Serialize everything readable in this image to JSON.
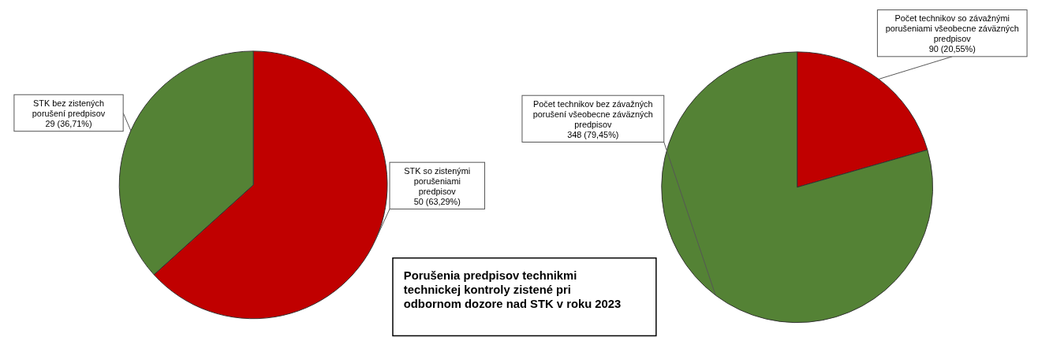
{
  "chart_data": [
    {
      "type": "pie",
      "title": "Porušenia predpisov technikmi technickej kontroly zistené pri odbornom dozore nad STK v roku 2023",
      "categories": [
        "STK so zistenými porušeniami predpisov",
        "STK bez zistených porušení predpisov"
      ],
      "values": [
        50,
        29
      ],
      "colors": [
        "#c00000",
        "#548235"
      ],
      "value_labels": [
        "50 (63,29%)",
        "29 (36,71%)"
      ]
    },
    {
      "type": "pie",
      "categories": [
        "Počet technikov so závažnými porušeniami všeobecne záväzných predpisov",
        "Počet technikov bez závažných porušení všeobecne záväzných predpisov"
      ],
      "values": [
        90,
        348
      ],
      "colors": [
        "#c00000",
        "#548235"
      ],
      "value_labels": [
        "90 (20,55%)",
        "348 (79,45%)"
      ]
    }
  ]
}
